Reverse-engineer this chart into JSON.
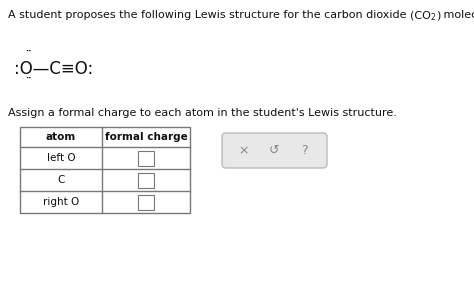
{
  "title_part1": "A student proposes the following Lewis structure for the carbon dioxide ",
  "title_formula_prefix": "(CO",
  "title_formula_sub": "2",
  "title_formula_suffix": ")",
  "title_end": " molecule.",
  "dots_above": "..",
  "dots_below": "..",
  "instruction": "Assign a formal charge to each atom in the student's Lewis structure.",
  "table_headers": [
    "atom",
    "formal charge"
  ],
  "table_rows": [
    "left O",
    "C",
    "right O"
  ],
  "button_symbols": [
    "×",
    "↺",
    "?"
  ],
  "bg_color": "#ffffff",
  "table_border_color": "#777777",
  "button_border_color": "#bbbbbb",
  "button_bg_color": "#e8e8e8",
  "font_color": "#111111",
  "title_fontsize": 8.0,
  "lewis_fontsize": 12.0,
  "instruction_fontsize": 8.0,
  "table_fontsize": 7.5
}
